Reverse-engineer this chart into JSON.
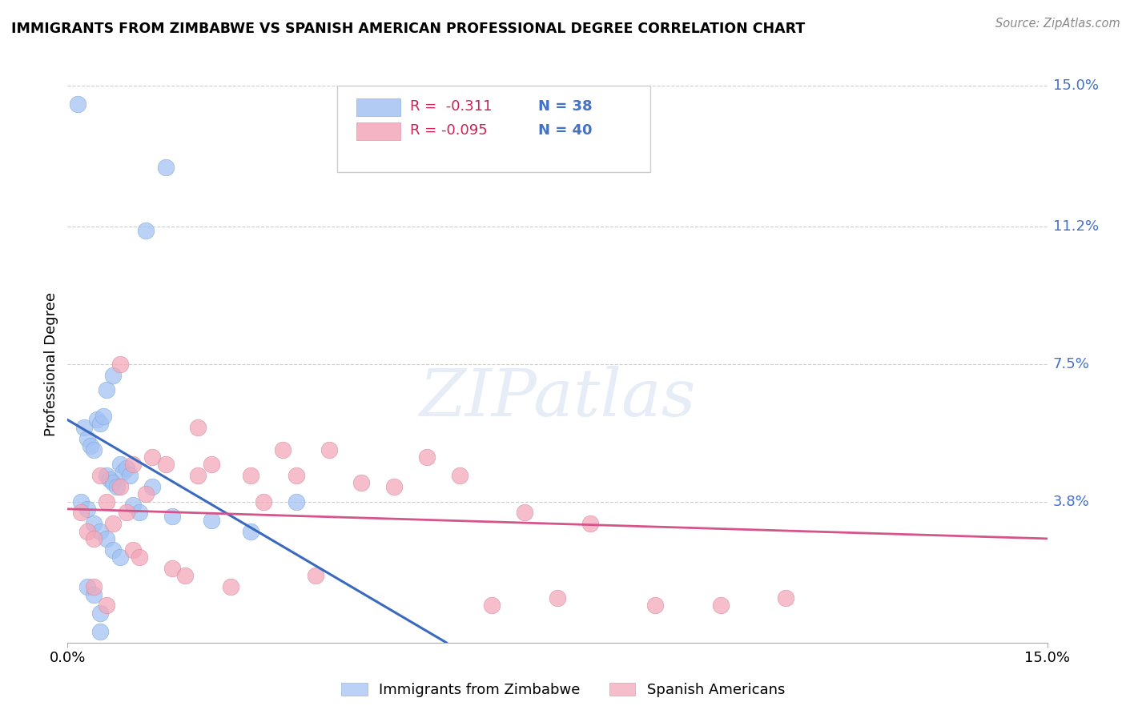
{
  "title": "IMMIGRANTS FROM ZIMBABWE VS SPANISH AMERICAN PROFESSIONAL DEGREE CORRELATION CHART",
  "source": "Source: ZipAtlas.com",
  "ylabel": "Professional Degree",
  "xlim": [
    0.0,
    15.0
  ],
  "ylim": [
    0.0,
    15.0
  ],
  "x_tick_labels": [
    "0.0%",
    "15.0%"
  ],
  "y_tick_values": [
    3.8,
    7.5,
    11.2,
    15.0
  ],
  "y_tick_labels": [
    "3.8%",
    "7.5%",
    "11.2%",
    "15.0%"
  ],
  "blue_color": "#a4c2f4",
  "pink_color": "#f4a7b9",
  "blue_line_color": "#3a6abf",
  "pink_line_color": "#d5548a",
  "watermark": "ZIPatlas",
  "series1_name": "Immigrants from Zimbabwe",
  "series2_name": "Spanish Americans",
  "series1_x": [
    0.15,
    0.25,
    0.3,
    0.35,
    0.4,
    0.45,
    0.5,
    0.55,
    0.6,
    0.65,
    0.7,
    0.75,
    0.8,
    0.85,
    0.9,
    0.95,
    1.0,
    1.1,
    1.2,
    1.3,
    1.5,
    1.6,
    0.2,
    0.3,
    0.4,
    0.5,
    0.6,
    0.7,
    0.8,
    0.3,
    0.4,
    0.5,
    2.2,
    2.8,
    3.5,
    0.6,
    0.7,
    0.5
  ],
  "series1_y": [
    14.5,
    5.8,
    5.5,
    5.3,
    5.2,
    6.0,
    5.9,
    6.1,
    4.5,
    4.4,
    4.3,
    4.2,
    4.8,
    4.6,
    4.7,
    4.5,
    3.7,
    3.5,
    11.1,
    4.2,
    12.8,
    3.4,
    3.8,
    3.6,
    3.2,
    3.0,
    2.8,
    2.5,
    2.3,
    1.5,
    1.3,
    0.8,
    3.3,
    3.0,
    3.8,
    6.8,
    7.2,
    0.3
  ],
  "series2_x": [
    0.2,
    0.3,
    0.4,
    0.5,
    0.6,
    0.7,
    0.8,
    0.9,
    1.0,
    1.1,
    1.2,
    1.3,
    1.5,
    1.6,
    1.8,
    2.0,
    2.2,
    2.5,
    2.8,
    3.0,
    3.3,
    3.5,
    3.8,
    4.0,
    4.5,
    5.0,
    5.5,
    6.0,
    7.0,
    8.0,
    9.0,
    10.0,
    11.0,
    0.4,
    0.6,
    0.8,
    1.0,
    2.0,
    6.5,
    7.5
  ],
  "series2_y": [
    3.5,
    3.0,
    2.8,
    4.5,
    3.8,
    3.2,
    4.2,
    3.5,
    2.5,
    2.3,
    4.0,
    5.0,
    4.8,
    2.0,
    1.8,
    5.8,
    4.8,
    1.5,
    4.5,
    3.8,
    5.2,
    4.5,
    1.8,
    5.2,
    4.3,
    4.2,
    5.0,
    4.5,
    3.5,
    3.2,
    1.0,
    1.0,
    1.2,
    1.5,
    1.0,
    7.5,
    4.8,
    4.5,
    1.0,
    1.2
  ],
  "blue_reg_x0": 0.0,
  "blue_reg_y0": 6.0,
  "blue_reg_x1": 5.8,
  "blue_reg_y1": 0.0,
  "pink_reg_x0": 0.0,
  "pink_reg_y0": 3.6,
  "pink_reg_x1": 15.0,
  "pink_reg_y1": 2.8,
  "legend1_r": "R =  -0.311",
  "legend1_n": "N = 38",
  "legend2_r": "R = -0.095",
  "legend2_n": "N = 40"
}
